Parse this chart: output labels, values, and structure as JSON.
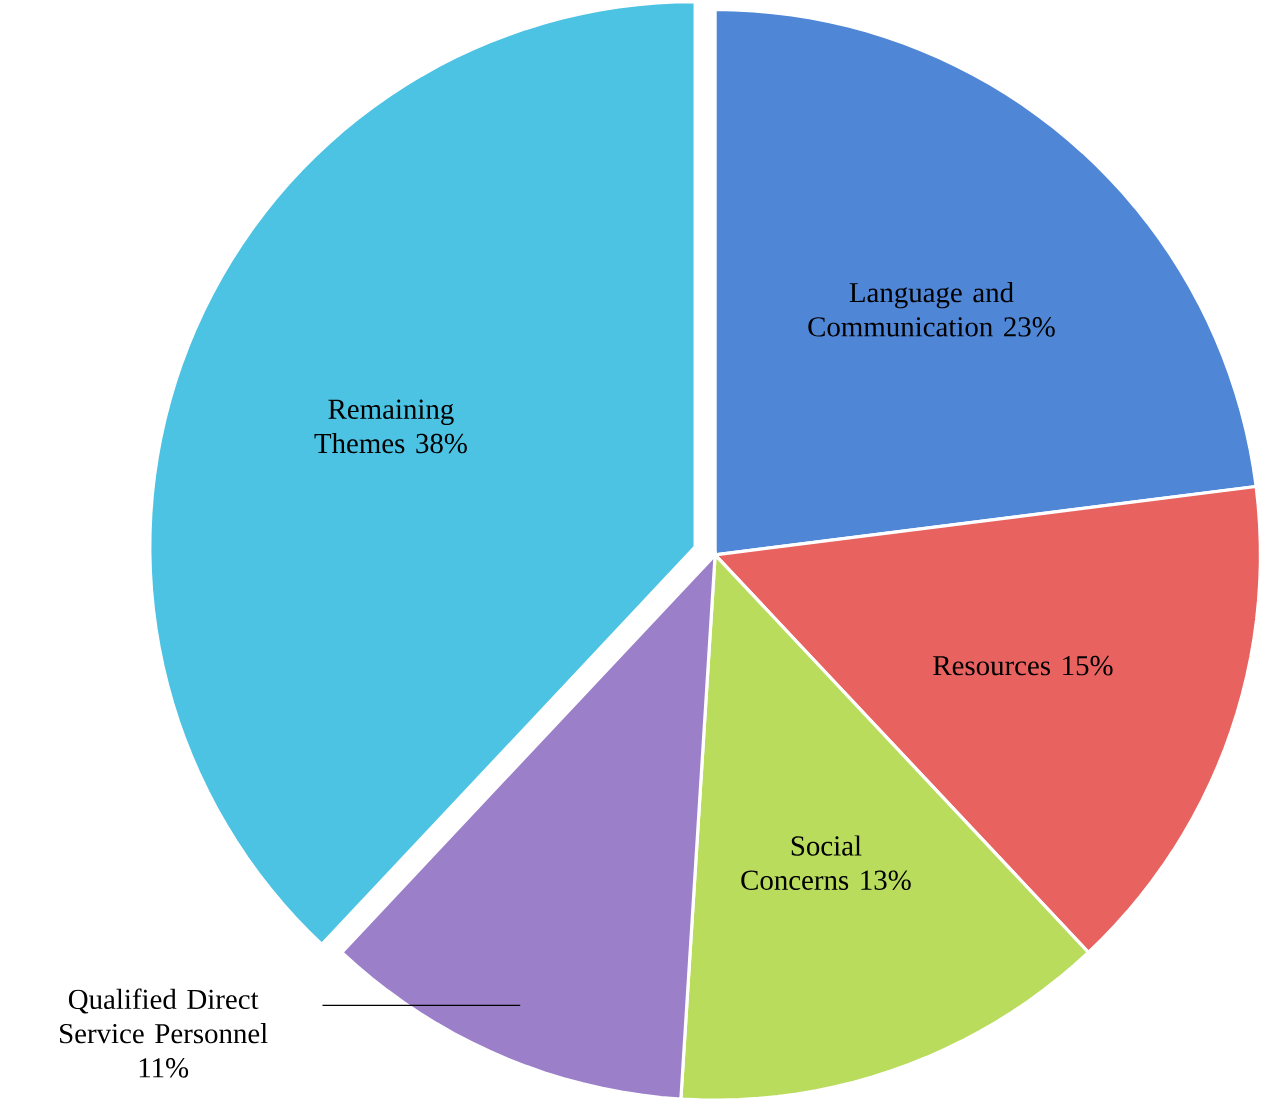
{
  "chart_data": {
    "type": "pie",
    "categories": [
      "Language and Communication",
      "Resources",
      "Social Concerns",
      "Qualified Direct Service Personnel",
      "Remaining Themes"
    ],
    "values": [
      23,
      15,
      13,
      11,
      38
    ],
    "value_labels": [
      "23%",
      "15%",
      "13%",
      "11%",
      "38%"
    ],
    "colors": [
      "#4f86d6",
      "#e8625f",
      "#b9dc5c",
      "#9b7fc8",
      "#4cc3e3"
    ]
  }
}
